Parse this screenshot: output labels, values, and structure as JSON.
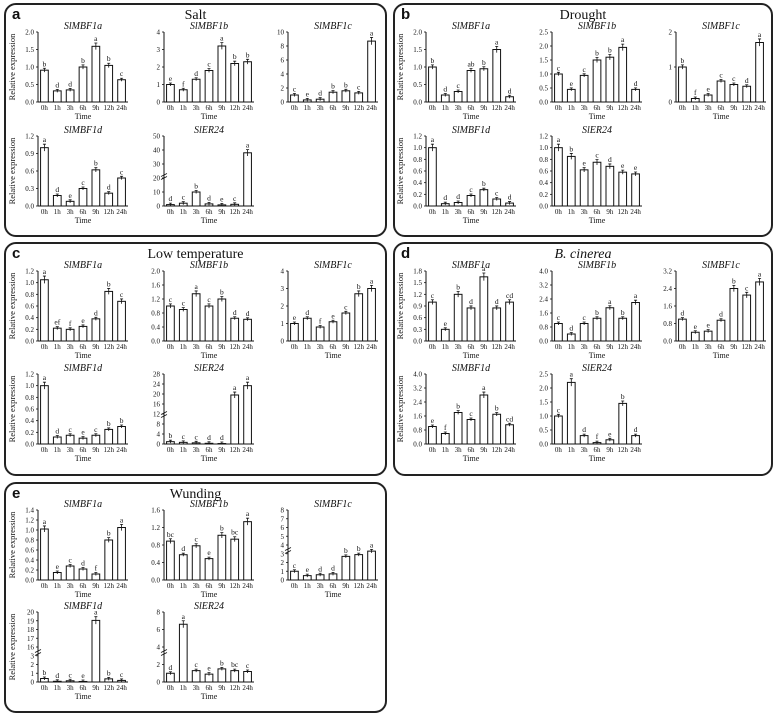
{
  "figure": {
    "x_categories": [
      "0h",
      "1h",
      "3h",
      "6h",
      "9h",
      "12h",
      "24h"
    ],
    "x_label": "Time",
    "y_label": "Relative expression"
  },
  "panels": [
    {
      "id": "a",
      "letter": "a",
      "title": "Salt",
      "italic": false
    },
    {
      "id": "b",
      "letter": "b",
      "title": "Drought",
      "italic": false
    },
    {
      "id": "c",
      "letter": "c",
      "title": "Low temperature",
      "italic": false
    },
    {
      "id": "d",
      "letter": "d",
      "title": "B. cinerea",
      "italic": true
    },
    {
      "id": "e",
      "letter": "e",
      "title": "Wunding",
      "italic": false
    }
  ],
  "chart_data": [
    {
      "panel": "a",
      "type": "bar",
      "title": "SlMBF1a",
      "ylim": [
        0,
        2.2
      ],
      "yticks": [
        "0.0",
        "0.5",
        "1.0",
        "1.5",
        "2.0"
      ],
      "values": [
        1.0,
        0.35,
        0.38,
        1.1,
        1.75,
        1.15,
        0.7
      ],
      "letters": [
        "b",
        "d",
        "d",
        "b",
        "a",
        "b",
        "c"
      ],
      "xlabel": "Time"
    },
    {
      "panel": "a",
      "type": "bar",
      "title": "SlMBF1b",
      "ylim": [
        0,
        4
      ],
      "yticks": [
        "0",
        "1",
        "2",
        "3",
        "4"
      ],
      "values": [
        1.0,
        0.7,
        1.3,
        1.8,
        3.2,
        2.2,
        2.3
      ],
      "letters": [
        "e",
        "f",
        "d",
        "c",
        "a",
        "b",
        "b"
      ],
      "xlabel": "Time"
    },
    {
      "panel": "a",
      "type": "bar",
      "title": "SlMBF1c",
      "ylim": [
        0,
        10
      ],
      "yticks": [
        "0",
        "2",
        "4",
        "6",
        "8",
        "10"
      ],
      "values": [
        1.0,
        0.3,
        0.4,
        1.4,
        1.6,
        1.3,
        8.7
      ],
      "letters": [
        "c",
        "e",
        "d",
        "b",
        "b",
        "c",
        "a"
      ],
      "xlabel": ""
    },
    {
      "panel": "a",
      "type": "bar",
      "title": "SlMBF1d",
      "ylim": [
        0,
        1.2
      ],
      "yticks": [
        "0.0",
        "0.3",
        "0.6",
        "0.9",
        "1.2"
      ],
      "values": [
        1.0,
        0.18,
        0.08,
        0.3,
        0.62,
        0.22,
        0.48
      ],
      "letters": [
        "a",
        "d",
        "e",
        "c",
        "b",
        "d",
        "c"
      ],
      "xlabel": "Time"
    },
    {
      "panel": "a",
      "type": "bar",
      "title": "SlER24",
      "ylim": [
        0,
        50
      ],
      "yticks": [
        "0",
        "10",
        "20",
        "30",
        "40",
        "50"
      ],
      "values": [
        1.0,
        2.0,
        10.0,
        1.5,
        0.8,
        1.2,
        38.0
      ],
      "letters": [
        "d",
        "c",
        "b",
        "d",
        "e",
        "c",
        "a"
      ],
      "xlabel": "Time",
      "broken": true
    },
    {
      "panel": "b",
      "type": "bar",
      "title": "SlMBF1a",
      "ylim": [
        0,
        2.0
      ],
      "yticks": [
        "0.0",
        "0.5",
        "1.0",
        "1.5",
        "2.0"
      ],
      "values": [
        1.0,
        0.2,
        0.3,
        0.9,
        0.95,
        1.5,
        0.15
      ],
      "letters": [
        "b",
        "d",
        "c",
        "ab",
        "b",
        "a",
        "d"
      ],
      "xlabel": "Time"
    },
    {
      "panel": "b",
      "type": "bar",
      "title": "SlMBF1b",
      "ylim": [
        0,
        2.5
      ],
      "yticks": [
        "0.0",
        "0.5",
        "1.0",
        "1.5",
        "2.0",
        "2.5"
      ],
      "values": [
        1.0,
        0.45,
        0.95,
        1.5,
        1.6,
        1.95,
        0.45
      ],
      "letters": [
        "c",
        "e",
        "c",
        "b",
        "b",
        "a",
        "d"
      ],
      "xlabel": "Time"
    },
    {
      "panel": "b",
      "type": "bar",
      "title": "SlMBF1c",
      "ylim": [
        0,
        2
      ],
      "yticks": [
        "0",
        "1",
        "2"
      ],
      "values": [
        1.0,
        0.1,
        0.2,
        0.6,
        0.5,
        0.45,
        1.7
      ],
      "letters": [
        "b",
        "f",
        "e",
        "c",
        "c",
        "d",
        "a"
      ],
      "xlabel": "Time"
    },
    {
      "panel": "b",
      "type": "bar",
      "title": "SlMBF1d",
      "ylim": [
        0,
        1.2
      ],
      "yticks": [
        "0.0",
        "0.2",
        "0.4",
        "0.6",
        "0.8",
        "1.0",
        "1.2"
      ],
      "values": [
        1.0,
        0.04,
        0.06,
        0.18,
        0.28,
        0.12,
        0.05
      ],
      "letters": [
        "a",
        "d",
        "d",
        "c",
        "b",
        "c",
        "d"
      ],
      "xlabel": "Time"
    },
    {
      "panel": "b",
      "type": "bar",
      "title": "SlER24",
      "ylim": [
        0,
        1.2
      ],
      "yticks": [
        "0.0",
        "0.2",
        "0.4",
        "0.6",
        "0.8",
        "1.0",
        "1.2"
      ],
      "values": [
        1.0,
        0.85,
        0.62,
        0.75,
        0.68,
        0.58,
        0.55
      ],
      "letters": [
        "a",
        "b",
        "e",
        "c",
        "d",
        "e",
        "e"
      ],
      "xlabel": "Time"
    },
    {
      "panel": "c",
      "type": "bar",
      "title": "SlMBF1a",
      "ylim": [
        0,
        1.2
      ],
      "yticks": [
        "0.0",
        "0.2",
        "0.4",
        "0.6",
        "0.8",
        "1.0",
        "1.2"
      ],
      "values": [
        1.05,
        0.22,
        0.2,
        0.25,
        0.38,
        0.85,
        0.68
      ],
      "letters": [
        "a",
        "ef",
        "f",
        "e",
        "d",
        "b",
        "c"
      ],
      "xlabel": "Time"
    },
    {
      "panel": "c",
      "type": "bar",
      "title": "SlMBF1b",
      "ylim": [
        0,
        2.0
      ],
      "yticks": [
        "0.0",
        "0.4",
        "0.8",
        "1.2",
        "1.6",
        "2.0"
      ],
      "values": [
        1.0,
        0.9,
        1.35,
        1.0,
        1.2,
        0.65,
        0.62
      ],
      "letters": [
        "c",
        "c",
        "a",
        "c",
        "b",
        "d",
        "d"
      ],
      "xlabel": "Time"
    },
    {
      "panel": "c",
      "type": "bar",
      "title": "SlMBF1c",
      "ylim": [
        0,
        4
      ],
      "yticks": [
        "0",
        "1",
        "2",
        "3",
        "4"
      ],
      "values": [
        1.0,
        1.3,
        0.8,
        1.1,
        1.6,
        2.7,
        3.0
      ],
      "letters": [
        "e",
        "d",
        "f",
        "e",
        "c",
        "b",
        "a"
      ],
      "xlabel": "Time"
    },
    {
      "panel": "c",
      "type": "bar",
      "title": "SlMBF1d",
      "ylim": [
        0,
        1.2
      ],
      "yticks": [
        "0.0",
        "0.2",
        "0.4",
        "0.6",
        "0.8",
        "1.0",
        "1.2"
      ],
      "values": [
        1.0,
        0.12,
        0.15,
        0.1,
        0.15,
        0.25,
        0.3
      ],
      "letters": [
        "a",
        "d",
        "c",
        "e",
        "c",
        "b",
        "b"
      ],
      "xlabel": "Time"
    },
    {
      "panel": "c",
      "type": "bar",
      "title": "SlER24",
      "ylim": [
        0,
        30
      ],
      "yticks": [
        "0",
        "4",
        "8",
        "12",
        "16",
        "20",
        "24",
        "28"
      ],
      "values": [
        1.0,
        0.7,
        0.5,
        0.3,
        0.2,
        21.0,
        25.0
      ],
      "letters": [
        "b",
        "c",
        "c",
        "d",
        "d",
        "a",
        "a"
      ],
      "xlabel": "Time",
      "broken": true
    },
    {
      "panel": "d",
      "type": "bar",
      "title": "SlMBF1a",
      "ylim": [
        0,
        1.8
      ],
      "yticks": [
        "0.0",
        "0.3",
        "0.6",
        "0.9",
        "1.2",
        "1.5",
        "1.8"
      ],
      "values": [
        1.0,
        0.3,
        1.2,
        0.85,
        1.65,
        0.85,
        1.0
      ],
      "letters": [
        "c",
        "e",
        "b",
        "d",
        "a",
        "d",
        "cd"
      ],
      "xlabel": "Time"
    },
    {
      "panel": "d",
      "type": "bar",
      "title": "SlMBF1b",
      "ylim": [
        0,
        4.0
      ],
      "yticks": [
        "0.0",
        "0.8",
        "1.6",
        "2.4",
        "3.2",
        "4.0"
      ],
      "values": [
        1.0,
        0.4,
        1.0,
        1.3,
        1.9,
        1.3,
        2.2
      ],
      "letters": [
        "c",
        "d",
        "c",
        "b",
        "a",
        "b",
        "a"
      ],
      "xlabel": "Time"
    },
    {
      "panel": "d",
      "type": "bar",
      "title": "SlMBF1c",
      "ylim": [
        0,
        3.2
      ],
      "yticks": [
        "0.0",
        "0.8",
        "1.6",
        "2.4",
        "3.2"
      ],
      "values": [
        1.0,
        0.4,
        0.45,
        0.95,
        2.4,
        2.1,
        2.7
      ],
      "letters": [
        "d",
        "e",
        "e",
        "d",
        "b",
        "c",
        "a"
      ],
      "xlabel": "Time"
    },
    {
      "panel": "d",
      "type": "bar",
      "title": "SlMBF1d",
      "ylim": [
        0,
        4.0
      ],
      "yticks": [
        "0.0",
        "0.8",
        "1.6",
        "2.4",
        "3.2",
        "4.0"
      ],
      "values": [
        1.0,
        0.6,
        1.8,
        1.4,
        2.8,
        1.7,
        1.1
      ],
      "letters": [
        "e",
        "f",
        "b",
        "c",
        "a",
        "b",
        "cd"
      ],
      "xlabel": "Time"
    },
    {
      "panel": "d",
      "type": "bar",
      "title": "SlER24",
      "ylim": [
        0,
        2.5
      ],
      "yticks": [
        "0.0",
        "0.5",
        "1.0",
        "1.5",
        "2.0",
        "2.5"
      ],
      "values": [
        1.0,
        2.2,
        0.3,
        0.05,
        0.15,
        1.45,
        0.3
      ],
      "letters": [
        "c",
        "a",
        "d",
        "f",
        "e",
        "b",
        "d"
      ],
      "xlabel": "Time"
    },
    {
      "panel": "e",
      "type": "bar",
      "title": "SlMBF1a",
      "ylim": [
        0,
        1.4
      ],
      "yticks": [
        "0.0",
        "0.2",
        "0.4",
        "0.6",
        "0.8",
        "1.0",
        "1.2",
        "1.4"
      ],
      "values": [
        1.02,
        0.15,
        0.28,
        0.22,
        0.12,
        0.8,
        1.05
      ],
      "letters": [
        "a",
        "e",
        "c",
        "d",
        "f",
        "b",
        "a"
      ],
      "xlabel": "Time"
    },
    {
      "panel": "e",
      "type": "bar",
      "title": "SlMBF1b",
      "ylim": [
        0,
        1.8
      ],
      "yticks": [
        "0.0",
        "0.4",
        "0.8",
        "1.2",
        "1.6"
      ],
      "values": [
        1.0,
        0.65,
        0.88,
        0.55,
        1.15,
        1.05,
        1.5
      ],
      "letters": [
        "bc",
        "d",
        "c",
        "e",
        "b",
        "bc",
        "a"
      ],
      "xlabel": "Time"
    },
    {
      "panel": "e",
      "type": "bar",
      "title": "SlMBF1c",
      "ylim": [
        0,
        8
      ],
      "yticks": [
        "0",
        "1",
        "2",
        "3",
        "4",
        "5",
        "6",
        "7",
        "8"
      ],
      "values": [
        1.0,
        0.5,
        0.6,
        0.7,
        2.7,
        2.9,
        3.3
      ],
      "letters": [
        "c",
        "e",
        "d",
        "d",
        "b",
        "b",
        "a"
      ],
      "xlabel": "Time",
      "broken": true
    },
    {
      "panel": "e",
      "type": "bar",
      "title": "SlMBF1d",
      "ylim": [
        0,
        20
      ],
      "yticks": [
        "0",
        "1",
        "2",
        "3",
        "16",
        "17",
        "18",
        "19",
        "20"
      ],
      "values": [
        1.0,
        0.2,
        0.35,
        0.15,
        17.6,
        0.9,
        0.45
      ],
      "letters": [
        "b",
        "d",
        "c",
        "e",
        "a",
        "b",
        "c"
      ],
      "xlabel": "Time",
      "broken": true
    },
    {
      "panel": "e",
      "type": "bar",
      "title": "SlER24",
      "ylim": [
        0,
        8
      ],
      "yticks": [
        "0",
        "2",
        "4",
        "6",
        "8"
      ],
      "values": [
        1.0,
        6.6,
        1.3,
        0.9,
        1.5,
        1.3,
        1.2
      ],
      "letters": [
        "d",
        "a",
        "c",
        "e",
        "b",
        "bc",
        "c"
      ],
      "xlabel": "Time",
      "broken": true
    }
  ]
}
